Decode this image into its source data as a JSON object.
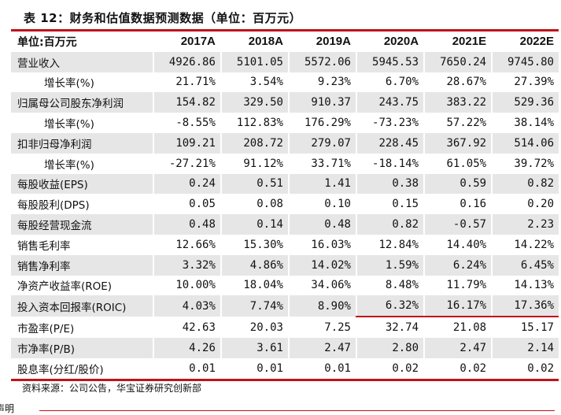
{
  "title": "表 12：财务和估值数据预测数据（单位：百万元）",
  "table": {
    "headers": [
      "单位:百万元",
      "2017A",
      "2018A",
      "2019A",
      "2020A",
      "2021E",
      "2022E"
    ],
    "rows": [
      {
        "label": "营业收入",
        "values": [
          "4926.86",
          "5101.05",
          "5572.06",
          "5945.53",
          "7650.24",
          "9745.80"
        ]
      },
      {
        "label": "增长率(%)",
        "values": [
          "21.71%",
          "3.54%",
          "9.23%",
          "6.70%",
          "28.67%",
          "27.39%"
        ]
      },
      {
        "label": "归属母公司股东净利润",
        "values": [
          "154.82",
          "329.50",
          "910.37",
          "243.75",
          "383.22",
          "529.36"
        ]
      },
      {
        "label": "增长率(%)",
        "values": [
          "-8.55%",
          "112.83%",
          "176.29%",
          "-73.23%",
          "57.22%",
          "38.14%"
        ]
      },
      {
        "label": "扣非归母净利润",
        "values": [
          "109.21",
          "208.72",
          "279.07",
          "228.45",
          "367.92",
          "514.06"
        ]
      },
      {
        "label": "增长率(%)",
        "values": [
          "-27.21%",
          "91.12%",
          "33.71%",
          "-18.14%",
          "61.05%",
          "39.72%"
        ]
      },
      {
        "label": "每股收益(EPS)",
        "values": [
          "0.24",
          "0.51",
          "1.41",
          "0.38",
          "0.59",
          "0.82"
        ]
      },
      {
        "label": "每股股利(DPS)",
        "values": [
          "0.05",
          "0.08",
          "0.10",
          "0.15",
          "0.16",
          "0.20"
        ]
      },
      {
        "label": "每股经营现金流",
        "values": [
          "0.48",
          "0.14",
          "0.48",
          "0.82",
          "-0.57",
          "2.23"
        ]
      },
      {
        "label": "销售毛利率",
        "values": [
          "12.66%",
          "15.30%",
          "16.03%",
          "12.84%",
          "14.40%",
          "14.22%"
        ]
      },
      {
        "label": "销售净利率",
        "values": [
          "3.32%",
          "4.86%",
          "14.02%",
          "1.59%",
          "6.24%",
          "6.45%"
        ]
      },
      {
        "label": "净资产收益率(ROE)",
        "values": [
          "10.00%",
          "18.04%",
          "34.06%",
          "8.48%",
          "11.79%",
          "14.13%"
        ]
      },
      {
        "label": "投入资本回报率(ROIC)",
        "values": [
          "4.03%",
          "7.74%",
          "8.90%",
          "6.32%",
          "16.17%",
          "17.36%"
        ]
      },
      {
        "label": "市盈率(P/E)",
        "values": [
          "42.63",
          "20.03",
          "7.25",
          "32.74",
          "21.08",
          "15.17"
        ]
      },
      {
        "label": "市净率(P/B)",
        "values": [
          "4.26",
          "3.61",
          "2.47",
          "2.80",
          "2.47",
          "2.14"
        ]
      },
      {
        "label": "股息率(分红/股价)",
        "values": [
          "0.01",
          "0.01",
          "0.01",
          "0.02",
          "0.02",
          "0.02"
        ]
      }
    ]
  },
  "source": "资料来源：公司公告，华宝证券研究创新部",
  "footer": "声明",
  "colors": {
    "accent": "#c0121b",
    "shade": "#e6e6e6"
  }
}
